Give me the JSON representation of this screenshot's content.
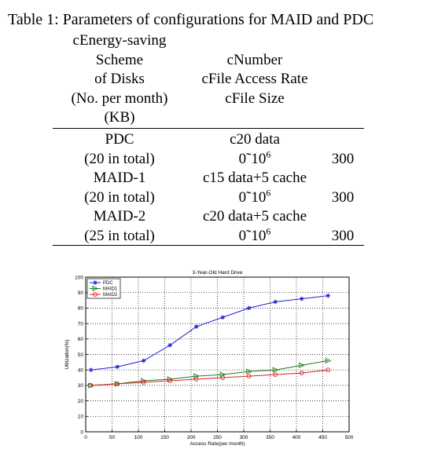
{
  "caption": "Table 1: Parameters of configurations for MAID and PDC",
  "table": {
    "header_col1": [
      "cEnergy-saving",
      "Scheme",
      "of Disks",
      "(No. per month)",
      "(KB)"
    ],
    "header_col2": [
      "cNumber",
      "cFile Access Rate",
      "cFile Size"
    ],
    "rows": [
      {
        "col1": "PDC",
        "col2": "c20 data",
        "col3": ""
      },
      {
        "col1": "(20 in total)",
        "col2_base": "0˜10",
        "col2_sup": "6",
        "col3": "300"
      },
      {
        "col1": "MAID-1",
        "col2": "c15 data+5 cache",
        "col3": ""
      },
      {
        "col1": "(20 in total)",
        "col2_base": "0˜10",
        "col2_sup": "6",
        "col3": "300"
      },
      {
        "col1": "MAID-2",
        "col2": "c20 data+5 cache",
        "col3": ""
      },
      {
        "col1": "(25 in total)",
        "col2_base": "0˜10",
        "col2_sup": "6",
        "col3": "300"
      }
    ]
  },
  "chart_data": {
    "type": "line",
    "title": "3-Year-Old Hard Drive",
    "xlabel": "Access Rate(per month)",
    "ylabel": "Utilization(%)",
    "xlim": [
      0,
      500
    ],
    "ylim": [
      0,
      100
    ],
    "xticks": [
      0,
      50,
      100,
      150,
      200,
      250,
      300,
      350,
      400,
      450,
      500
    ],
    "yticks": [
      0,
      10,
      20,
      30,
      40,
      50,
      60,
      70,
      80,
      90,
      100
    ],
    "grid": true,
    "legend_position": "top-left",
    "x": [
      10,
      60,
      110,
      160,
      210,
      260,
      310,
      360,
      410,
      460
    ],
    "series": [
      {
        "name": "PDC",
        "color": "#1f1fd6",
        "marker": "star",
        "values": [
          40,
          42,
          46,
          56,
          68,
          74,
          80,
          84,
          86,
          88
        ]
      },
      {
        "name": "MAID1",
        "color": "#1f7a1f",
        "marker": "triangle",
        "values": [
          30,
          31,
          33,
          34,
          36,
          37,
          39,
          40,
          43,
          46
        ]
      },
      {
        "name": "MAID2",
        "color": "#e02020",
        "marker": "circle",
        "values": [
          30,
          31,
          32,
          33,
          34,
          35,
          36,
          37,
          38,
          40
        ]
      }
    ]
  }
}
